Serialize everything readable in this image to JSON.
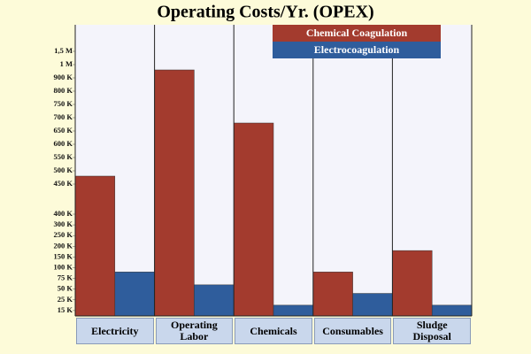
{
  "chart_data": {
    "type": "bar",
    "title": "Operating Costs/Yr. (OPEX)",
    "categories": [
      "Electricity",
      "Operating Labor",
      "Chemicals",
      "Consumables",
      "Sludge Disposal"
    ],
    "series": [
      {
        "name": "Chemical Coagulation",
        "color": "#a33b2e",
        "values": [
          480000,
          960000,
          680000,
          90000,
          180000
        ]
      },
      {
        "name": "Electrocoagulation",
        "color": "#2f5d9c",
        "values": [
          90000,
          60000,
          20000,
          40000,
          20000
        ]
      }
    ],
    "yticks": [
      {
        "value": 1500000,
        "label": "1,5 M"
      },
      {
        "value": 1000000,
        "label": "1 M"
      },
      {
        "value": 900000,
        "label": "900 K"
      },
      {
        "value": 800000,
        "label": "800 K"
      },
      {
        "value": 750000,
        "label": "750 K"
      },
      {
        "value": 700000,
        "label": "700 K"
      },
      {
        "value": 650000,
        "label": "650 K"
      },
      {
        "value": 600000,
        "label": "600 K"
      },
      {
        "value": 550000,
        "label": "550 K"
      },
      {
        "value": 500000,
        "label": "500 K"
      },
      {
        "value": 450000,
        "label": "450 K"
      },
      {
        "value": 400000,
        "label": "400 K"
      },
      {
        "value": 300000,
        "label": "300 K"
      },
      {
        "value": 250000,
        "label": "250 K"
      },
      {
        "value": 200000,
        "label": "200 K"
      },
      {
        "value": 150000,
        "label": "150 K"
      },
      {
        "value": 100000,
        "label": "100 K"
      },
      {
        "value": 75000,
        "label": "75 K"
      },
      {
        "value": 50000,
        "label": "50 K"
      },
      {
        "value": 25000,
        "label": "25 K"
      },
      {
        "value": 15000,
        "label": "15 K"
      }
    ],
    "legend": "top-right"
  }
}
